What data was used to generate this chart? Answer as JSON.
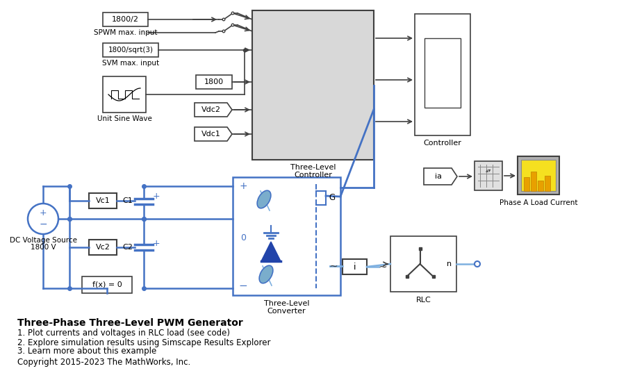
{
  "title": "Three-Phase Three-Level PWM Generator",
  "subtitle_lines": [
    "1. Plot currents and voltages in RLC load (see code)",
    "2. Explore simulation results using Simscape Results Explorer",
    "3. Learn more about this example"
  ],
  "copyright": "Copyright 2015-2023 The MathWorks, Inc.",
  "bg_color": "#ffffff",
  "block_edge_color": "#404040",
  "blue_line_color": "#4472c4",
  "blue_light_color": "#7eb0e0",
  "block_fill_white": "#ffffff",
  "block_fill_light_gray": "#d8d8d8",
  "block_fill_gray": "#b0b0b0",
  "diode_color": "#2244aa",
  "igbt_color": "#7aadcc"
}
